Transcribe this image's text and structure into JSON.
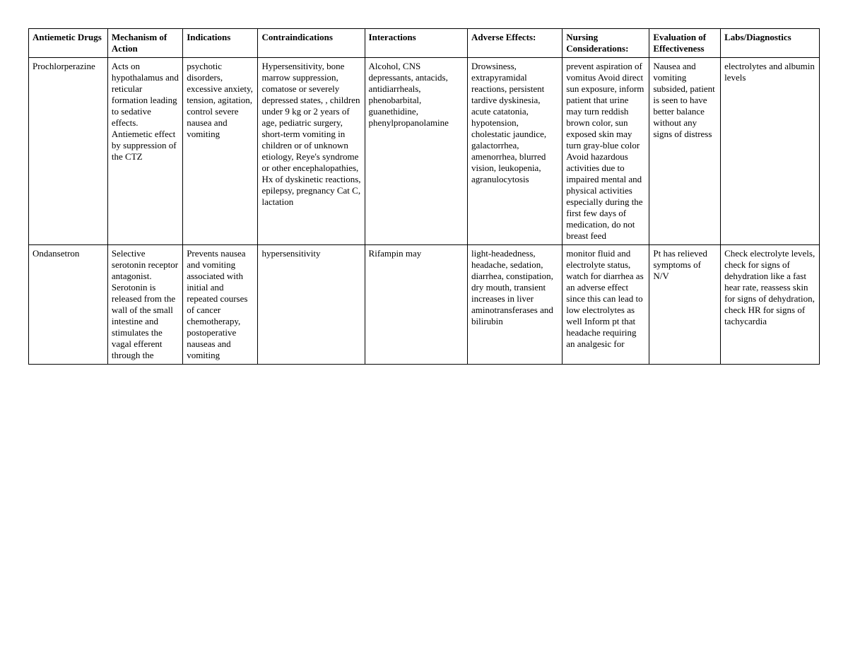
{
  "table": {
    "columns": [
      "Antiemetic Drugs",
      "Mechanism of Action",
      "Indications",
      "Contraindications",
      "Interactions",
      "Adverse Effects:",
      "Nursing Considerations:",
      "Evaluation of Effectiveness",
      "Labs/Diagnostics"
    ],
    "rows": [
      {
        "drug": "Prochlorperazine",
        "mechanism": "Acts on hypothalamus and reticular formation leading to sedative effects. Antiemetic effect by suppression of the CTZ",
        "indications": "psychotic disorders, excessive anxiety, tension, agitation, control severe nausea and vomiting",
        "contraindications": "Hypersensitivity, bone marrow suppression, comatose or severely depressed states, , children under 9 kg or 2 years of age, pediatric surgery, short-term vomiting in children or of unknown etiology, Reye's syndrome or other encephalopathies, Hx of dyskinetic reactions, epilepsy, pregnancy Cat C, lactation",
        "interactions": "Alcohol, CNS depressants, antacids, antidiarrheals, phenobarbital, guanethidine, phenylpropanolamine",
        "adverse": "Drowsiness, extrapyramidal reactions, persistent tardive dyskinesia, acute catatonia, hypotension, cholestatic jaundice, galactorrhea, amenorrhea, blurred vision, leukopenia, agranulocytosis",
        "nursing": "prevent aspiration of vomitus Avoid direct sun exposure, inform patient that urine may turn reddish brown color, sun exposed skin may turn gray-blue color Avoid hazardous activities due to impaired mental and physical activities especially during the first few days of medication, do not breast feed",
        "evaluation": "Nausea and vomiting subsided, patient is seen to have better balance without any signs of distress",
        "labs": "electrolytes and albumin levels"
      },
      {
        "drug": "Ondansetron",
        "mechanism": "Selective serotonin receptor antagonist. Serotonin is released from the wall of the small intestine and stimulates the vagal efferent through the",
        "indications": "Prevents nausea and vomiting associated with initial and repeated courses of cancer chemotherapy, postoperative nauseas and vomiting",
        "contraindications": "hypersensitivity",
        "interactions": "Rifampin may",
        "adverse": "light-headedness, headache, sedation, diarrhea, constipation, dry mouth, transient increases in liver aminotransferases and bilirubin",
        "nursing": "monitor fluid and electrolyte status, watch for diarrhea as an adverse effect since this can lead to low electrolytes as well Inform pt that headache requiring an analgesic for",
        "evaluation": "Pt has relieved symptoms of N/V",
        "labs": "Check electrolyte levels, check for signs of dehydration like a fast hear rate, reassess skin for signs of dehydration, check HR for signs of tachycardia"
      }
    ]
  }
}
